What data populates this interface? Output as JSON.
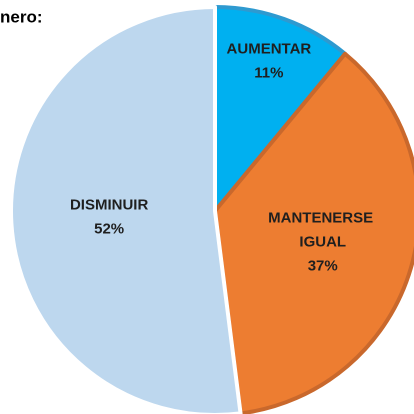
{
  "chart_data": {
    "type": "pie",
    "title": "nero:",
    "categories": [
      "AUMENTAR",
      "MANTENERSE IGUAL",
      "DISMINUIR"
    ],
    "values": [
      11,
      37,
      52
    ],
    "value_labels": [
      "11%",
      "37%",
      "52%"
    ],
    "colors": [
      "#00b0f0",
      "#ed7d31",
      "#bdd7ee"
    ],
    "edge_colors": [
      "#2e9ad0",
      "#c9682c",
      "#ffffff"
    ],
    "start_angle": "top",
    "direction": "clockwise"
  }
}
